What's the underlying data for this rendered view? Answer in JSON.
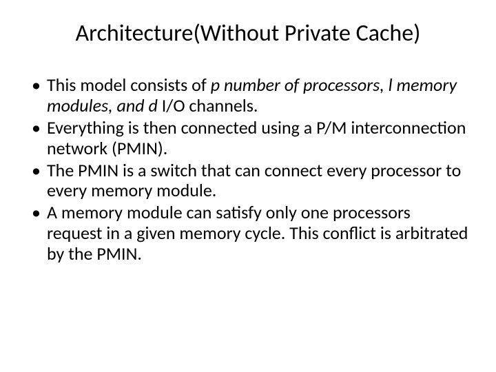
{
  "slide": {
    "title": "Architecture(Without Private Cache)",
    "title_fontsize": 34,
    "title_color": "#000000",
    "background_color": "#ffffff",
    "bullets": [
      {
        "runs": [
          {
            "text": "This model consists of ",
            "italic": false
          },
          {
            "text": "p number of processors, l memory modules, and d ",
            "italic": true
          },
          {
            "text": "I/O channels.",
            "italic": false
          }
        ]
      },
      {
        "runs": [
          {
            "text": "Everything is then connected using a P/M interconnection network (PMIN).",
            "italic": false
          }
        ]
      },
      {
        "runs": [
          {
            "text": " The PMIN is a switch that can connect every processor to every memory module.",
            "italic": false
          }
        ]
      },
      {
        "runs": [
          {
            "text": " A memory module can satisfy only one processors request in a given memory cycle. This conflict is arbitrated by the PMIN.",
            "italic": false
          }
        ]
      }
    ],
    "bullet_fontsize": 26,
    "bullet_color": "#000000"
  }
}
